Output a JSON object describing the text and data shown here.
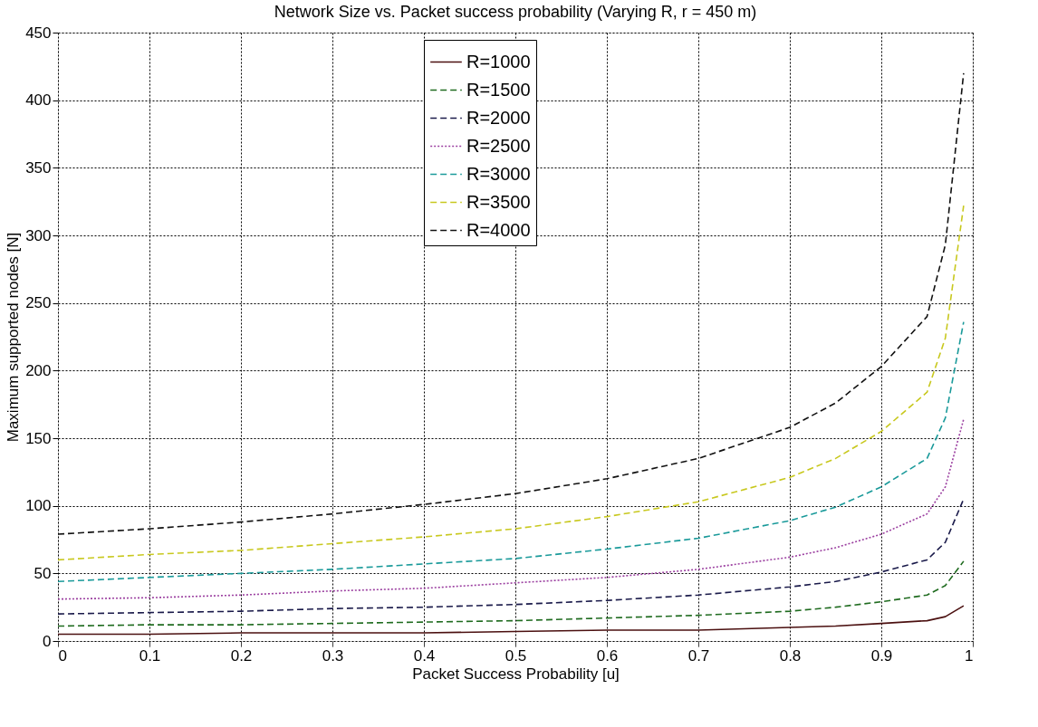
{
  "chart_data": {
    "type": "line",
    "title": "Network Size vs. Packet success probability (Varying R, r = 450 m)",
    "xlabel": "Packet Success Probability [u]",
    "ylabel": "Maximum supported nodes [N]",
    "x": [
      0,
      0.1,
      0.2,
      0.3,
      0.4,
      0.5,
      0.6,
      0.7,
      0.8,
      0.85,
      0.9,
      0.95,
      0.97,
      0.99
    ],
    "series": [
      {
        "name": "R=1000",
        "color": "#4b1010",
        "line_style": "solid",
        "values": [
          5,
          5,
          6,
          6,
          6,
          7,
          8,
          8,
          10,
          11,
          13,
          15,
          18,
          26
        ]
      },
      {
        "name": "R=1500",
        "color": "#1f6b1f",
        "line_style": "dashed",
        "values": [
          11,
          12,
          12,
          13,
          14,
          15,
          17,
          19,
          22,
          25,
          29,
          34,
          41,
          59
        ]
      },
      {
        "name": "R=2000",
        "color": "#1a1a4a",
        "line_style": "dashed",
        "values": [
          20,
          21,
          22,
          24,
          25,
          27,
          30,
          34,
          40,
          44,
          51,
          60,
          73,
          105
        ]
      },
      {
        "name": "R=2500",
        "color": "#9b3fa0",
        "line_style": "dotted",
        "values": [
          31,
          32,
          34,
          37,
          39,
          43,
          47,
          53,
          62,
          69,
          79,
          94,
          114,
          164
        ]
      },
      {
        "name": "R=3000",
        "color": "#1a9a9a",
        "line_style": "dashed",
        "values": [
          44,
          47,
          50,
          53,
          57,
          61,
          68,
          76,
          89,
          99,
          114,
          135,
          165,
          236
        ]
      },
      {
        "name": "R=3500",
        "color": "#c8c81e",
        "line_style": "dashed",
        "values": [
          60,
          64,
          67,
          72,
          77,
          83,
          92,
          103,
          121,
          135,
          155,
          184,
          224,
          322
        ]
      },
      {
        "name": "R=4000",
        "color": "#111111",
        "line_style": "dashed",
        "values": [
          79,
          83,
          88,
          94,
          101,
          109,
          120,
          135,
          158,
          176,
          203,
          240,
          293,
          420
        ]
      }
    ],
    "xlim": [
      0,
      1
    ],
    "xticks": [
      0,
      0.1,
      0.2,
      0.3,
      0.4,
      0.5,
      0.6,
      0.7,
      0.8,
      0.9,
      1
    ],
    "ylim": [
      0,
      450
    ],
    "yticks": [
      0,
      50,
      100,
      150,
      200,
      250,
      300,
      350,
      400,
      450
    ],
    "grid": true,
    "legend": "top",
    "marker": "none"
  }
}
